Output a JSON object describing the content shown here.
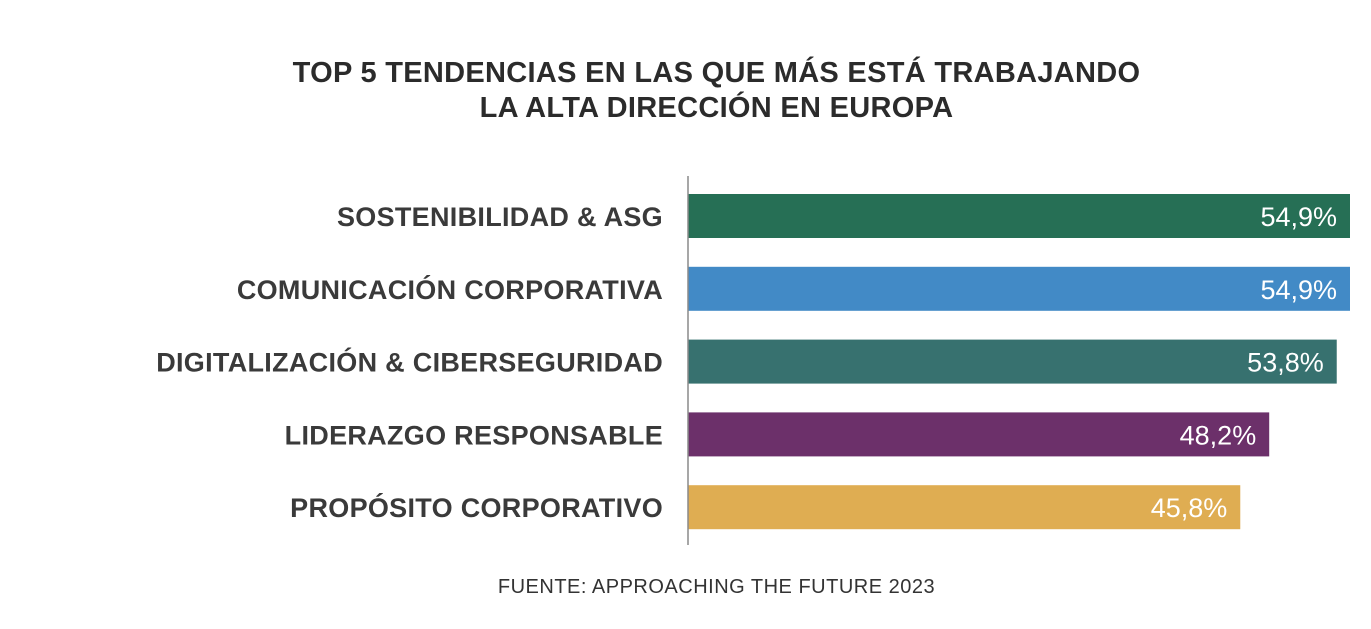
{
  "chart_data": {
    "type": "bar",
    "orientation": "horizontal",
    "title_lines": [
      "TOP 5 TENDENCIAS EN LAS QUE MÁS ESTÁ TRABAJANDO",
      "LA ALTA DIRECCIÓN EN EUROPA"
    ],
    "categories": [
      "SOSTENIBILIDAD & ASG",
      "COMUNICACIÓN CORPORATIVA",
      "DIGITALIZACIÓN & CIBERSEGURIDAD",
      "LIDERAZGO RESPONSABLE",
      "PROPÓSITO CORPORATIVO"
    ],
    "values": [
      54.9,
      54.9,
      53.8,
      48.2,
      45.8
    ],
    "value_labels": [
      "54,9%",
      "54,9%",
      "53,8%",
      "48,2%",
      "45,8%"
    ],
    "colors": [
      "#266f55",
      "#428ac6",
      "#37716f",
      "#6c306a",
      "#dfad52"
    ],
    "xlim": [
      0,
      54.9
    ],
    "grid": false,
    "legend": "none"
  },
  "source": "FUENTE: APPROACHING THE FUTURE 2023"
}
